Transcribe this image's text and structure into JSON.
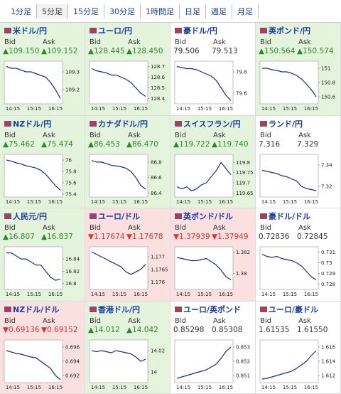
{
  "tabs": [
    "1分足",
    "5分足",
    "15分足",
    "30分足",
    "1時間足",
    "日足",
    "週足",
    "月足"
  ],
  "selected_tab": 1,
  "tiles": [
    {
      "title": "米ドル/円",
      "bid_label": "Bid",
      "ask_label": "Ask",
      "bid": "▲109.150",
      "ask": "▲109.152",
      "trend": "up",
      "chart": {
        "ylim": [
          109.12,
          109.36
        ],
        "yticks": [
          109.3,
          109.2
        ],
        "xticks": [
          "14:15",
          "15:15",
          "16:15"
        ],
        "values": [
          109.33,
          109.32,
          109.32,
          109.31,
          109.3,
          109.3,
          109.29,
          109.28,
          109.27,
          109.24,
          109.2,
          109.15
        ]
      }
    },
    {
      "title": "ユーロ/円",
      "bid_label": "Bid",
      "ask_label": "Ask",
      "bid": "▲128.445",
      "ask": "▲128.450",
      "trend": "up",
      "chart": {
        "ylim": [
          128.35,
          128.75
        ],
        "yticks": [
          128.7,
          128.6,
          128.5,
          128.4
        ],
        "xticks": [
          "14:15",
          "15:15",
          "16:15"
        ],
        "values": [
          128.68,
          128.66,
          128.65,
          128.64,
          128.62,
          128.62,
          128.6,
          128.58,
          128.55,
          128.5,
          128.45,
          128.42
        ]
      }
    },
    {
      "title": "豪ドル/円",
      "bid_label": "Bid",
      "ask_label": "Ask",
      "bid": "79.506",
      "ask": "79.513",
      "trend": "flat",
      "chart": {
        "ylim": [
          79.5,
          79.9
        ],
        "yticks": [
          79.8,
          79.6
        ],
        "xticks": [
          "14:15",
          "15:15",
          "16:15"
        ],
        "values": [
          79.85,
          79.84,
          79.83,
          79.83,
          79.82,
          79.8,
          79.78,
          79.76,
          79.72,
          79.65,
          79.58,
          79.53
        ]
      }
    },
    {
      "title": "英ポンド/円",
      "bid_label": "Bid",
      "ask_label": "Ask",
      "bid": "▲150.564",
      "ask": "▲150.574",
      "trend": "up",
      "chart": {
        "ylim": [
          150.5,
          151.1
        ],
        "yticks": [
          151,
          150.8,
          150.6
        ],
        "xticks": [
          "14:15",
          "15:15",
          "16:15"
        ],
        "values": [
          151,
          151,
          150.98,
          150.97,
          150.95,
          150.95,
          150.93,
          150.9,
          150.85,
          150.78,
          150.7,
          150.6
        ]
      }
    },
    {
      "title": "NZドル/円",
      "bid_label": "Bid",
      "ask_label": "Ask",
      "bid": "▲75.462",
      "ask": "▲75.474",
      "trend": "up",
      "chart": {
        "ylim": [
          75.35,
          76.1
        ],
        "yticks": [
          76,
          75.8,
          75.6,
          75.4
        ],
        "xticks": [
          "14:15",
          "15:15",
          "16:15"
        ],
        "values": [
          76,
          75.98,
          75.95,
          75.93,
          75.9,
          75.88,
          75.86,
          75.82,
          75.75,
          75.65,
          75.55,
          75.47
        ]
      }
    },
    {
      "title": "カナダドル/円",
      "bid_label": "Bid",
      "ask_label": "Ask",
      "bid": "▲86.453",
      "ask": "▲86.470",
      "trend": "up",
      "chart": {
        "ylim": [
          86.35,
          86.9
        ],
        "yticks": [
          86.8,
          86.6,
          86.4
        ],
        "xticks": [
          "14:15",
          "15:15",
          "16:15"
        ],
        "values": [
          86.82,
          86.8,
          86.8,
          86.78,
          86.76,
          86.75,
          86.74,
          86.72,
          86.68,
          86.6,
          86.5,
          86.45
        ]
      }
    },
    {
      "title": "スイスフラン/円",
      "bid_label": "Bid",
      "ask_label": "Ask",
      "bid": "▲119.722",
      "ask": "▲119.740",
      "trend": "up",
      "chart": {
        "ylim": [
          119.63,
          119.84
        ],
        "yticks": [
          119.8,
          119.75,
          119.7,
          119.65
        ],
        "xticks": [
          "14:15",
          "15:15",
          "16:15"
        ],
        "values": [
          119.68,
          119.67,
          119.68,
          119.66,
          119.67,
          119.69,
          119.7,
          119.73,
          119.76,
          119.8,
          119.77,
          119.74
        ]
      }
    },
    {
      "title": "ランド/円",
      "bid_label": "Bid",
      "ask_label": "Ask",
      "bid": "7.316",
      "ask": "7.329",
      "trend": "flat",
      "chart": {
        "ylim": [
          7.31,
          7.35
        ],
        "yticks": [
          7.34,
          7.32
        ],
        "xticks": [
          "14:15",
          "15:15",
          "16:15"
        ],
        "values": [
          7.335,
          7.334,
          7.333,
          7.332,
          7.33,
          7.329,
          7.327,
          7.325,
          7.32,
          7.318,
          7.317,
          7.316
        ]
      }
    },
    {
      "title": "人民元/円",
      "bid_label": "Bid",
      "ask_label": "Ask",
      "bid": "▲16.807",
      "ask": "▲16.837",
      "trend": "up",
      "chart": {
        "ylim": [
          16.79,
          16.86
        ],
        "yticks": [
          16.84,
          16.82,
          16.8
        ],
        "xticks": [
          "14:15",
          "15:15",
          "16:15"
        ],
        "values": [
          16.85,
          16.85,
          16.845,
          16.84,
          16.84,
          16.835,
          16.83,
          16.83,
          16.82,
          16.81,
          16.805,
          16.807
        ]
      }
    },
    {
      "title": "ユーロ/ドル",
      "bid_label": "Bid",
      "ask_label": "Ask",
      "bid": "▼1.17674",
      "ask": "▼1.17678",
      "trend": "down",
      "chart": {
        "ylim": [
          1.1757,
          1.1774
        ],
        "yticks": [
          1.177,
          1.1765,
          1.176
        ],
        "xticks": [
          "14:15",
          "15:15",
          "16:15"
        ],
        "values": [
          1.1772,
          1.1771,
          1.177,
          1.1769,
          1.1768,
          1.1767,
          1.1766,
          1.1764,
          1.1763,
          1.1764,
          1.1765,
          1.1767
        ]
      }
    },
    {
      "title": "英ポンド/ドル",
      "bid_label": "Bid",
      "ask_label": "Ask",
      "bid": "▼1.37939",
      "ask": "▼1.37949",
      "trend": "down",
      "chart": {
        "ylim": [
          1.3785,
          1.3825
        ],
        "yticks": [
          1.382,
          1.38
        ],
        "xticks": [
          "14:15",
          "15:15",
          "16:15"
        ],
        "values": [
          1.3815,
          1.3814,
          1.3813,
          1.3812,
          1.3812,
          1.3813,
          1.3814,
          1.3811,
          1.3808,
          1.3803,
          1.3797,
          1.3794
        ]
      }
    },
    {
      "title": "豪ドル/ドル",
      "bid_label": "Bid",
      "ask_label": "Ask",
      "bid": "0.72836",
      "ask": "0.72845",
      "trend": "flat",
      "chart": {
        "ylim": [
          0.7275,
          0.7315
        ],
        "yticks": [
          0.731,
          0.73,
          0.729,
          0.728
        ],
        "xticks": [
          "14:15",
          "15:15",
          "16:15"
        ],
        "values": [
          0.7308,
          0.7306,
          0.7305,
          0.7306,
          0.7304,
          0.7303,
          0.7302,
          0.73,
          0.7297,
          0.7292,
          0.7287,
          0.7284
        ]
      }
    },
    {
      "title": "NZドル/ドル",
      "bid_label": "Bid",
      "ask_label": "Ask",
      "bid": "▼0.69136",
      "ask": "▼0.69152",
      "trend": "down",
      "chart": {
        "ylim": [
          0.691,
          0.697
        ],
        "yticks": [
          0.696,
          0.694,
          0.692
        ],
        "xticks": [
          "14:15",
          "15:15",
          "16:15"
        ],
        "values": [
          0.6955,
          0.6953,
          0.6951,
          0.695,
          0.6948,
          0.6946,
          0.6945,
          0.694,
          0.6935,
          0.693,
          0.692,
          0.6914
        ]
      }
    },
    {
      "title": "香港ドル/円",
      "bid_label": "Bid",
      "ask_label": "Ask",
      "bid": "▲14.012",
      "ask": "▲14.042",
      "trend": "up",
      "chart": {
        "ylim": [
          13.99,
          14.03
        ],
        "yticks": [
          14.02,
          14
        ],
        "xticks": [
          "14:15",
          "15:15",
          "16:15"
        ],
        "values": [
          14.02,
          14.019,
          14.02,
          14.019,
          14.018,
          14.02,
          14.019,
          14.018,
          14.017,
          14.014,
          14.01,
          14.012
        ]
      }
    },
    {
      "title": "ユーロ/英ポンド",
      "bid_label": "Bid",
      "ask_label": "Ask",
      "bid": "0.85298",
      "ask": "0.85308",
      "trend": "flat",
      "chart": {
        "ylim": [
          0.8505,
          0.8535
        ],
        "yticks": [
          0.853,
          0.852,
          0.851
        ],
        "xticks": [
          "14:15",
          "15:15",
          "16:15"
        ],
        "values": [
          0.8508,
          0.8509,
          0.851,
          0.8511,
          0.8512,
          0.8513,
          0.8514,
          0.8516,
          0.8518,
          0.8522,
          0.8527,
          0.853
        ]
      }
    },
    {
      "title": "ユーロ/豪ドル",
      "bid_label": "Bid",
      "ask_label": "Ask",
      "bid": "1.61535",
      "ask": "1.61550",
      "trend": "flat",
      "chart": {
        "ylim": [
          1.611,
          1.617
        ],
        "yticks": [
          1.616,
          1.614,
          1.612
        ],
        "xticks": [
          "14:15",
          "15:15",
          "16:15"
        ],
        "values": [
          1.6115,
          1.6116,
          1.6118,
          1.612,
          1.6122,
          1.6124,
          1.6126,
          1.613,
          1.6135,
          1.614,
          1.6148,
          1.6155
        ]
      }
    }
  ]
}
